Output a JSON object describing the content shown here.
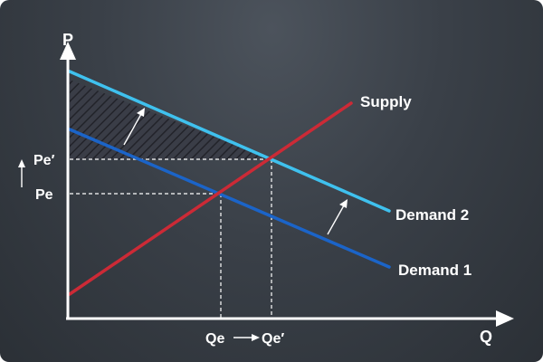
{
  "colors": {
    "supply": "#cc2a36",
    "demand1": "#1b64c8",
    "demand2": "#3fc1ee",
    "axis": "#ffffff",
    "guide": "#ffffff",
    "hatch": "#26272e"
  },
  "axes": {
    "y_label": "P",
    "x_label": "Q"
  },
  "curves": {
    "supply": "Supply",
    "demand1": "Demand 1",
    "demand2": "Demand 2"
  },
  "price_ticks": {
    "initial": "Pe",
    "new": "Pe′"
  },
  "quantity_ticks": {
    "initial": "Qe",
    "new": "Qe′"
  },
  "icons": [
    "up-arrow-icon",
    "right-arrow-icon",
    "shift-arrow-icon"
  ]
}
